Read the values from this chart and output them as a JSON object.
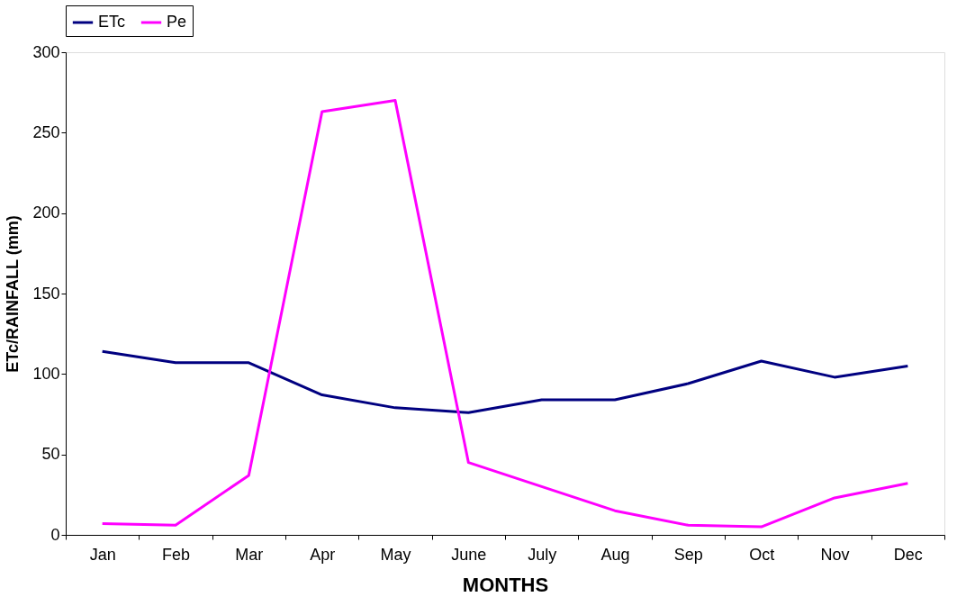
{
  "chart_data": {
    "type": "line",
    "xlabel": "MONTHS",
    "ylabel": "ETc/RAINFALL (mm)",
    "categories": [
      "Jan",
      "Feb",
      "Mar",
      "Apr",
      "May",
      "June",
      "July",
      "Aug",
      "Sep",
      "Oct",
      "Nov",
      "Dec"
    ],
    "series": [
      {
        "name": "ETc",
        "color": "#000080",
        "values": [
          114,
          107,
          107,
          87,
          79,
          76,
          84,
          84,
          94,
          108,
          98,
          105
        ]
      },
      {
        "name": "Pe",
        "color": "#ff00ff",
        "values": [
          7,
          6,
          37,
          263,
          270,
          45,
          30,
          15,
          6,
          5,
          23,
          32
        ]
      }
    ],
    "ylim": [
      0,
      300
    ],
    "yticks": [
      0,
      50,
      100,
      150,
      200,
      250,
      300
    ],
    "grid": false,
    "legend": "top",
    "marker": "none",
    "line_style": "solid"
  }
}
